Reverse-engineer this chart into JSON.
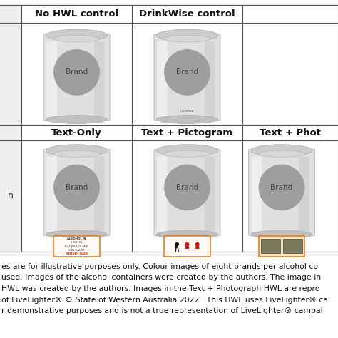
{
  "background_color": "#ffffff",
  "grid_line_color": "#555555",
  "can_body_color": "#e0e0e0",
  "can_top_color": "#cccccc",
  "can_shade_color": "#d8d8d8",
  "brand_circle_color": "#9e9e9e",
  "brand_text_color": "#444444",
  "header_row1_cols": [
    "No HWL control",
    "DrinkWise control"
  ],
  "header_row2_cols": [
    "Text-Only",
    "Text + Pictogram",
    "Text + Phot"
  ],
  "label_border_orange": "#e87d1e",
  "footer_lines": [
    "es are for illustrative purposes only. Colour images of eight brands per alcohol co",
    "used. Images of the alcohol containers were created by the authors. The image in",
    "HWL was created by the authors. Images in the Text + Photograph HWL are repro",
    "of LiveLighter® © State of Western Australia 2022.  This HWL uses LiveLighter® ca",
    "r demonstrative purposes and is not a true representation of LiveLighter® campai"
  ],
  "footer_fontsize": 7.8,
  "header_fontsize": 9.5
}
